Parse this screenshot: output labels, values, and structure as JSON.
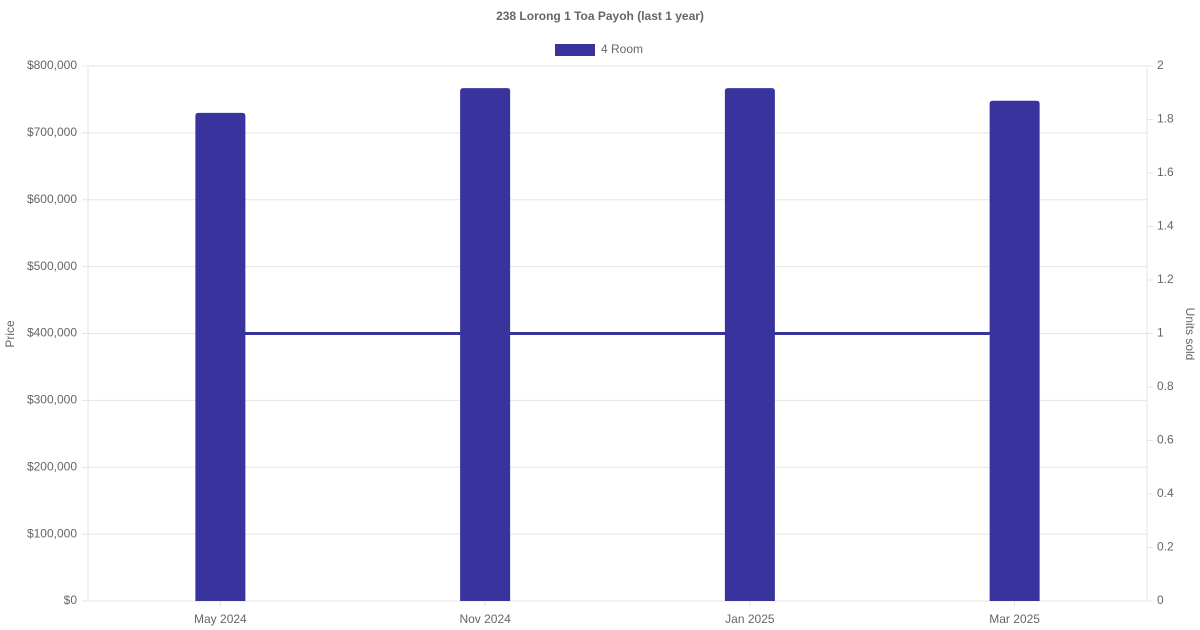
{
  "chart_data": {
    "type": "bar",
    "title": "238 Lorong 1 Toa Payoh (last 1 year)",
    "categories": [
      "May 2024",
      "Nov 2024",
      "Jan 2025",
      "Mar 2025"
    ],
    "series": [
      {
        "name": "4 Room",
        "type": "bar",
        "color": "#38339d",
        "values": [
          730000,
          767000,
          767000,
          748000
        ]
      },
      {
        "type": "line",
        "axis": "y2",
        "color": "#38339d",
        "values": [
          1,
          1,
          1,
          1
        ]
      }
    ],
    "y_label": "Price",
    "y2_label": "Units sold",
    "ylim": [
      0,
      800000
    ],
    "yticks": [
      {
        "value": 0,
        "label": "$0"
      },
      {
        "value": 100000,
        "label": "$100,000"
      },
      {
        "value": 200000,
        "label": "$200,000"
      },
      {
        "value": 300000,
        "label": "$300,000"
      },
      {
        "value": 400000,
        "label": "$400,000"
      },
      {
        "value": 500000,
        "label": "$500,000"
      },
      {
        "value": 600000,
        "label": "$600,000"
      },
      {
        "value": 700000,
        "label": "$700,000"
      },
      {
        "value": 800000,
        "label": "$800,000"
      }
    ],
    "y2lim": [
      0,
      2
    ],
    "y2ticks": [
      0,
      0.2,
      0.4,
      0.6,
      0.8,
      1,
      1.2,
      1.4,
      1.6,
      1.8,
      2
    ],
    "grid": true,
    "legend": "top"
  }
}
